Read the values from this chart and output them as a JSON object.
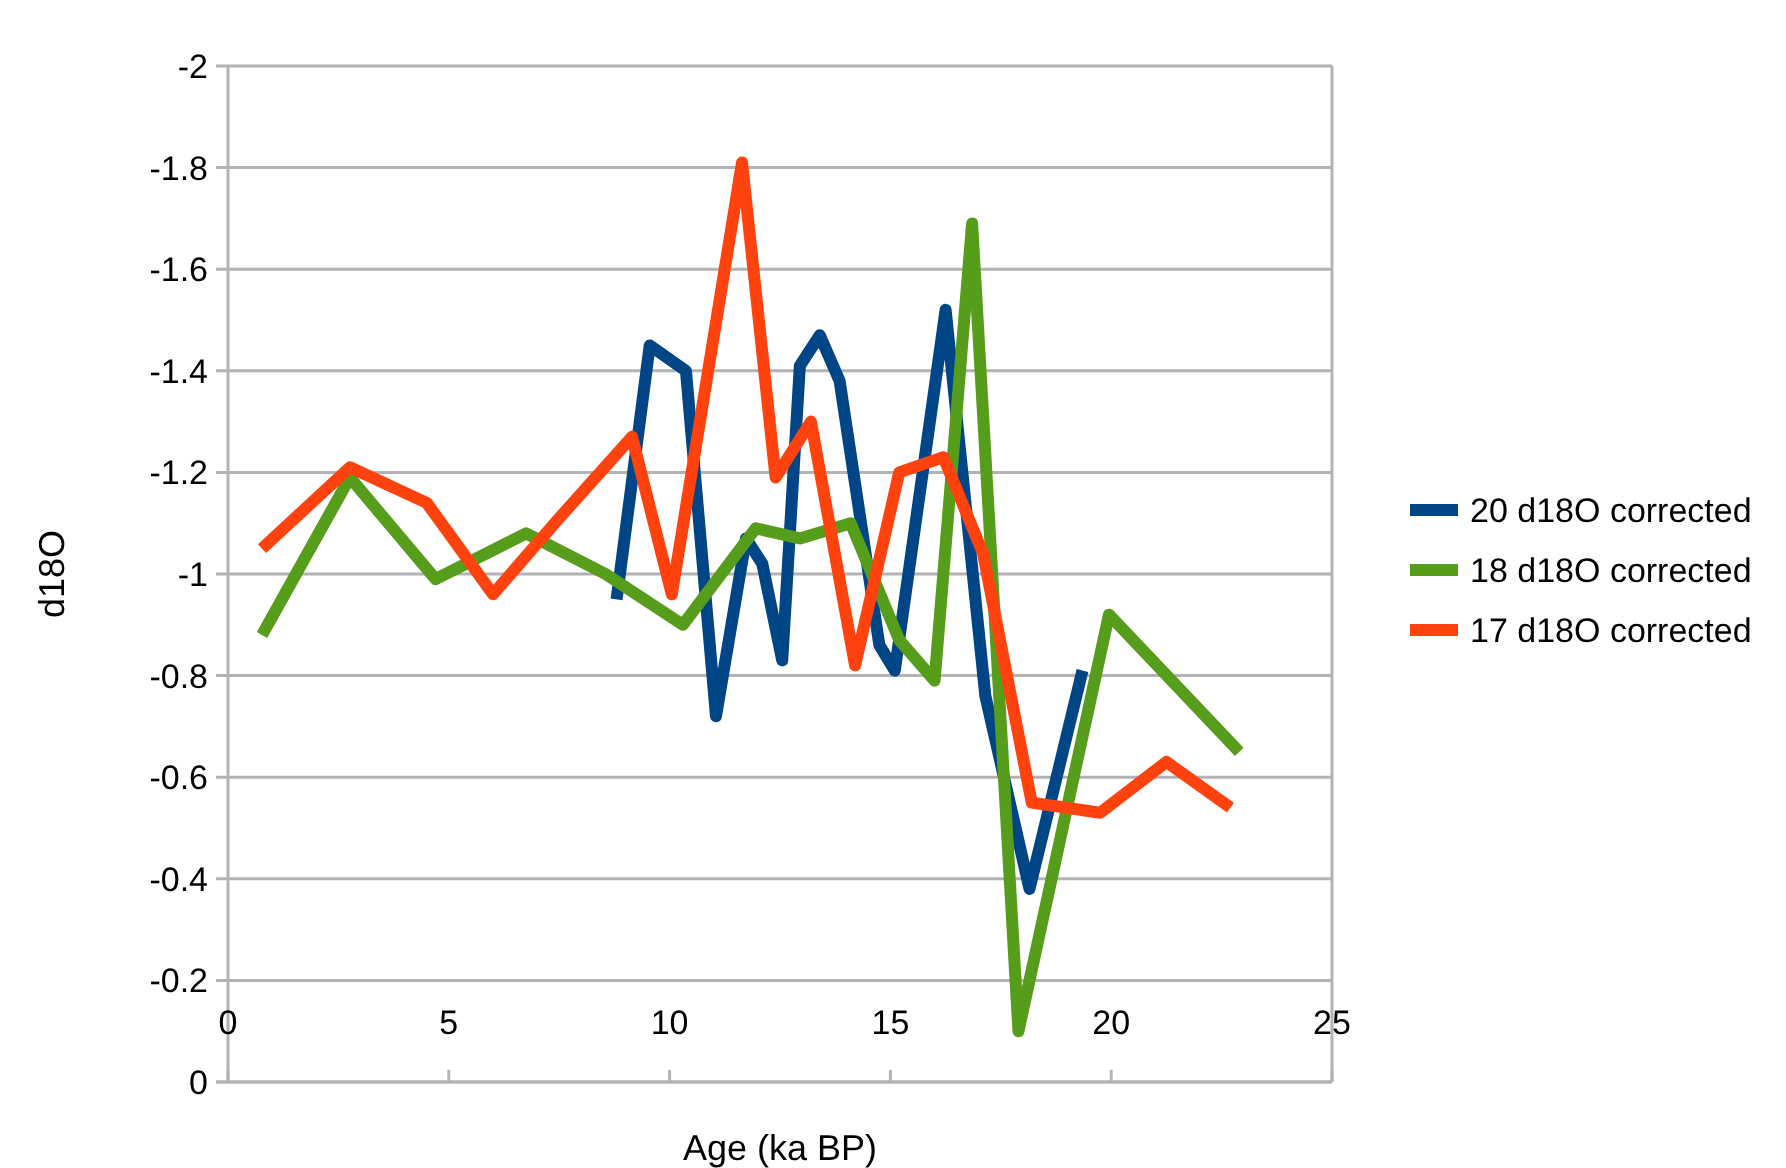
{
  "chart_data": {
    "type": "line",
    "xlabel": "Age (ka BP)",
    "ylabel": "d18O",
    "xlim": [
      0,
      25
    ],
    "xticks": [
      0,
      5,
      10,
      15,
      20,
      25
    ],
    "ylim": [
      0,
      -2
    ],
    "yticks": [
      0,
      -0.2,
      -0.4,
      -0.6,
      -0.8,
      -1,
      -1.2,
      -1.4,
      -1.6,
      -1.8,
      -2
    ],
    "grid": "y",
    "legend": "right",
    "marker": "none",
    "line_style": "solid",
    "series": [
      {
        "name": "20 d18O corrected",
        "color": "#004586",
        "x": [
          8.8,
          9.55,
          10.37,
          11.05,
          11.73,
          12.1,
          12.55,
          12.95,
          13.4,
          13.85,
          14.75,
          15.1,
          16.25,
          17.15,
          18.15,
          19.35
        ],
        "values": [
          -0.95,
          -1.45,
          -1.4,
          -0.72,
          -1.07,
          -1.02,
          -0.83,
          -1.41,
          -1.47,
          -1.38,
          -0.86,
          -0.81,
          -1.52,
          -0.76,
          -0.38,
          -0.81
        ]
      },
      {
        "name": "18 d18O corrected",
        "color": "#579d1c",
        "x": [
          0.77,
          2.76,
          4.7,
          6.75,
          8.55,
          10.3,
          11.95,
          12.95,
          14.1,
          15.2,
          16.0,
          16.85,
          17.9,
          19.95,
          22.9
        ],
        "values": [
          -0.88,
          -1.19,
          -0.99,
          -1.08,
          -1.0,
          -0.9,
          -1.09,
          -1.07,
          -1.1,
          -0.87,
          -0.79,
          -1.69,
          -0.1,
          -0.92,
          -0.65
        ]
      },
      {
        "name": "17 d18O corrected",
        "color": "#ff420e",
        "x": [
          0.77,
          2.76,
          4.5,
          6.0,
          7.5,
          9.15,
          10.05,
          11.64,
          12.4,
          13.2,
          14.2,
          15.2,
          16.2,
          17.1,
          18.2,
          19.75,
          21.25,
          22.7
        ],
        "values": [
          -1.05,
          -1.21,
          -1.14,
          -0.96,
          -1.11,
          -1.27,
          -0.96,
          -1.81,
          -1.19,
          -1.3,
          -0.82,
          -1.2,
          -1.23,
          -1.04,
          -0.55,
          -0.53,
          -0.63,
          -0.54
        ]
      }
    ]
  }
}
